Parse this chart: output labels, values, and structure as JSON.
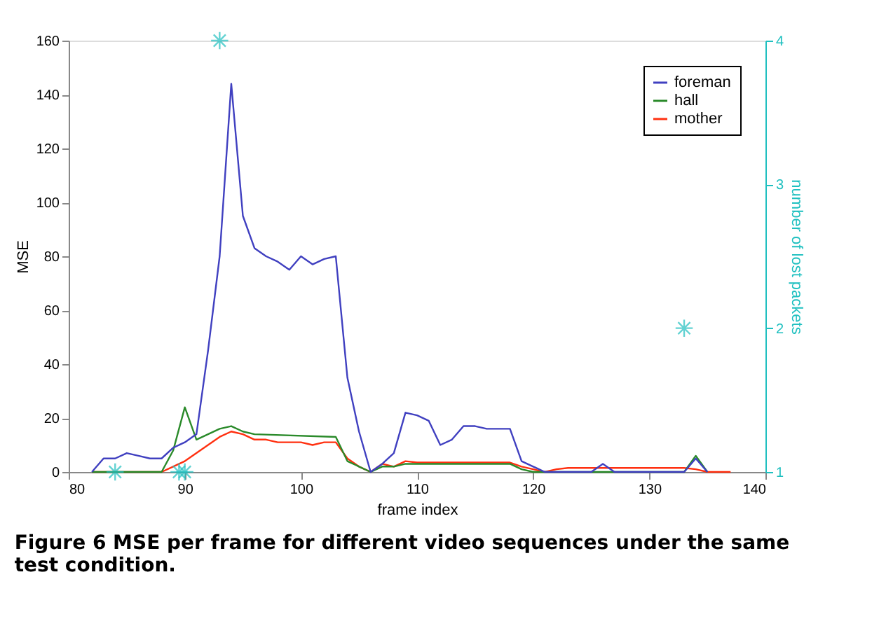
{
  "chart_data": {
    "type": "line",
    "xlabel": "frame index",
    "ylabel": "MSE",
    "y2label": "number of lost packets",
    "annotations": [
      "Figure 6 MSE per frame for different video sequences under the same test condition."
    ],
    "xlim": [
      80,
      140
    ],
    "xticks": [
      80,
      90,
      100,
      110,
      120,
      130,
      140
    ],
    "ylim": [
      0,
      160
    ],
    "yticks": [
      0,
      20,
      40,
      60,
      80,
      100,
      120,
      140,
      160
    ],
    "y2lim": [
      1,
      4
    ],
    "y2ticks": [
      1,
      2,
      3,
      4
    ],
    "grid": false,
    "legend": "top right",
    "line_style": "solid",
    "series": [
      {
        "name": "foreman",
        "color": "#4040c0",
        "x": [
          82,
          83,
          84,
          85,
          86,
          87,
          88,
          89,
          90,
          91,
          92,
          93,
          94,
          95,
          96,
          97,
          98,
          99,
          100,
          101,
          102,
          103,
          104,
          105,
          106,
          107,
          108,
          109,
          110,
          111,
          112,
          113,
          114,
          115,
          116,
          117,
          118,
          119,
          120,
          121,
          122,
          125,
          126,
          127,
          133,
          134,
          135
        ],
        "values": [
          0,
          5,
          5,
          7,
          6,
          5,
          5,
          9,
          11,
          14,
          45,
          80,
          144,
          95,
          83,
          80,
          78,
          75,
          80,
          77,
          79,
          80,
          35,
          15,
          0,
          3,
          7,
          22,
          21,
          19,
          10,
          12,
          17,
          17,
          16,
          16,
          16,
          4,
          2,
          0,
          0,
          0,
          3,
          0,
          0,
          5,
          0
        ]
      },
      {
        "name": "hall",
        "color": "#2a8a2a",
        "x": [
          82,
          88,
          89,
          90,
          91,
          92,
          93,
          94,
          95,
          96,
          103,
          104,
          105,
          106,
          107,
          108,
          109,
          110,
          118,
          119,
          120,
          133,
          134,
          135
        ],
        "values": [
          0,
          0,
          8,
          24,
          12,
          14,
          16,
          17,
          15,
          14,
          13,
          4,
          2,
          0,
          2,
          2,
          3,
          3,
          3,
          1,
          0,
          0,
          6,
          0
        ]
      },
      {
        "name": "mother",
        "color": "#ff3010",
        "x": [
          82,
          88,
          89,
          90,
          91,
          92,
          93,
          94,
          95,
          96,
          97,
          98,
          99,
          100,
          101,
          102,
          103,
          104,
          105,
          106,
          107,
          108,
          109,
          110,
          118,
          119,
          120,
          121,
          122,
          123,
          133,
          134,
          135,
          137
        ],
        "values": [
          0,
          0,
          2,
          4,
          7,
          10,
          13,
          15,
          14,
          12,
          12,
          11,
          11,
          11,
          10,
          11,
          11,
          5,
          2,
          0,
          3,
          2,
          4,
          3.5,
          3.5,
          2,
          1,
          0,
          1,
          1.5,
          1.5,
          1,
          0,
          0
        ]
      },
      {
        "type": "scatter",
        "axis": "y2",
        "marker": "cross",
        "color": "#20c0c0",
        "x": [
          84,
          89.5,
          90,
          93,
          133
        ],
        "values": [
          1,
          1,
          1,
          4,
          2
        ]
      }
    ]
  }
}
